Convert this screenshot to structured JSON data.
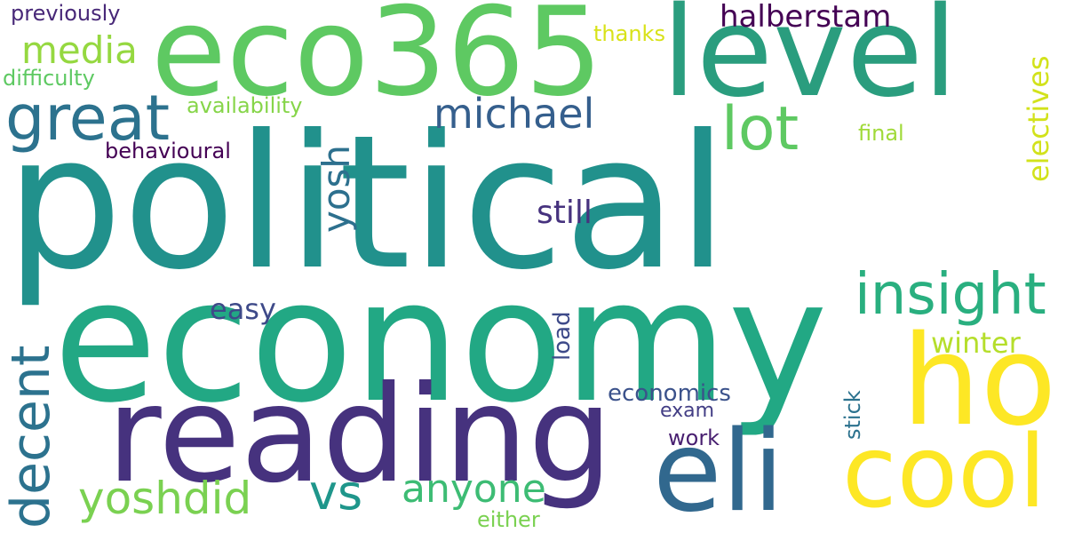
{
  "words": [
    {
      "key": "political",
      "text": "political",
      "color": "#21918c"
    },
    {
      "key": "economy",
      "text": "economy",
      "color": "#22a884"
    },
    {
      "key": "eco365",
      "text": "eco365",
      "color": "#5ec962"
    },
    {
      "key": "level",
      "text": "level",
      "color": "#2a9d7e"
    },
    {
      "key": "reading",
      "text": "reading",
      "color": "#46327e"
    },
    {
      "key": "ho",
      "text": "ho",
      "color": "#fde725"
    },
    {
      "key": "eli",
      "text": "eli",
      "color": "#31688e"
    },
    {
      "key": "cool",
      "text": "cool",
      "color": "#fde725"
    },
    {
      "key": "great",
      "text": "great",
      "color": "#2c728e"
    },
    {
      "key": "decent",
      "text": "decent",
      "color": "#2c728e"
    },
    {
      "key": "insight",
      "text": "insight",
      "color": "#29af7f"
    },
    {
      "key": "lot",
      "text": "lot",
      "color": "#5ec962"
    },
    {
      "key": "yoshdid",
      "text": "yoshdid",
      "color": "#7ad151"
    },
    {
      "key": "anyone",
      "text": "anyone",
      "color": "#3dbc74"
    },
    {
      "key": "vs",
      "text": "vs",
      "color": "#1f968b"
    },
    {
      "key": "michael",
      "text": "michael",
      "color": "#355f8d"
    },
    {
      "key": "media",
      "text": "media",
      "color": "#95d840"
    },
    {
      "key": "yosh",
      "text": "yosh",
      "color": "#2d708e"
    },
    {
      "key": "halberstam",
      "text": "halberstam",
      "color": "#440154"
    },
    {
      "key": "still",
      "text": "still",
      "color": "#46327e"
    },
    {
      "key": "easy",
      "text": "easy",
      "color": "#3e4a89"
    },
    {
      "key": "winter",
      "text": "winter",
      "color": "#b5de2b"
    },
    {
      "key": "electives",
      "text": "electives",
      "color": "#d2e21b"
    },
    {
      "key": "economics",
      "text": "economics",
      "color": "#3b528b"
    },
    {
      "key": "exam",
      "text": "exam",
      "color": "#433e85"
    },
    {
      "key": "work",
      "text": "work",
      "color": "#481f70"
    },
    {
      "key": "either",
      "text": "either",
      "color": "#7ad151"
    },
    {
      "key": "load",
      "text": "load",
      "color": "#3e4a89"
    },
    {
      "key": "stick",
      "text": "stick",
      "color": "#2c728e"
    },
    {
      "key": "final",
      "text": "final",
      "color": "#a0da39"
    },
    {
      "key": "thanks",
      "text": "thanks",
      "color": "#d8e219"
    },
    {
      "key": "availability",
      "text": "availability",
      "color": "#86d549"
    },
    {
      "key": "behavioural",
      "text": "behavioural",
      "color": "#440154"
    },
    {
      "key": "difficulty",
      "text": "difficulty",
      "color": "#5ec962"
    },
    {
      "key": "previously",
      "text": "previously",
      "color": "#482878"
    }
  ]
}
